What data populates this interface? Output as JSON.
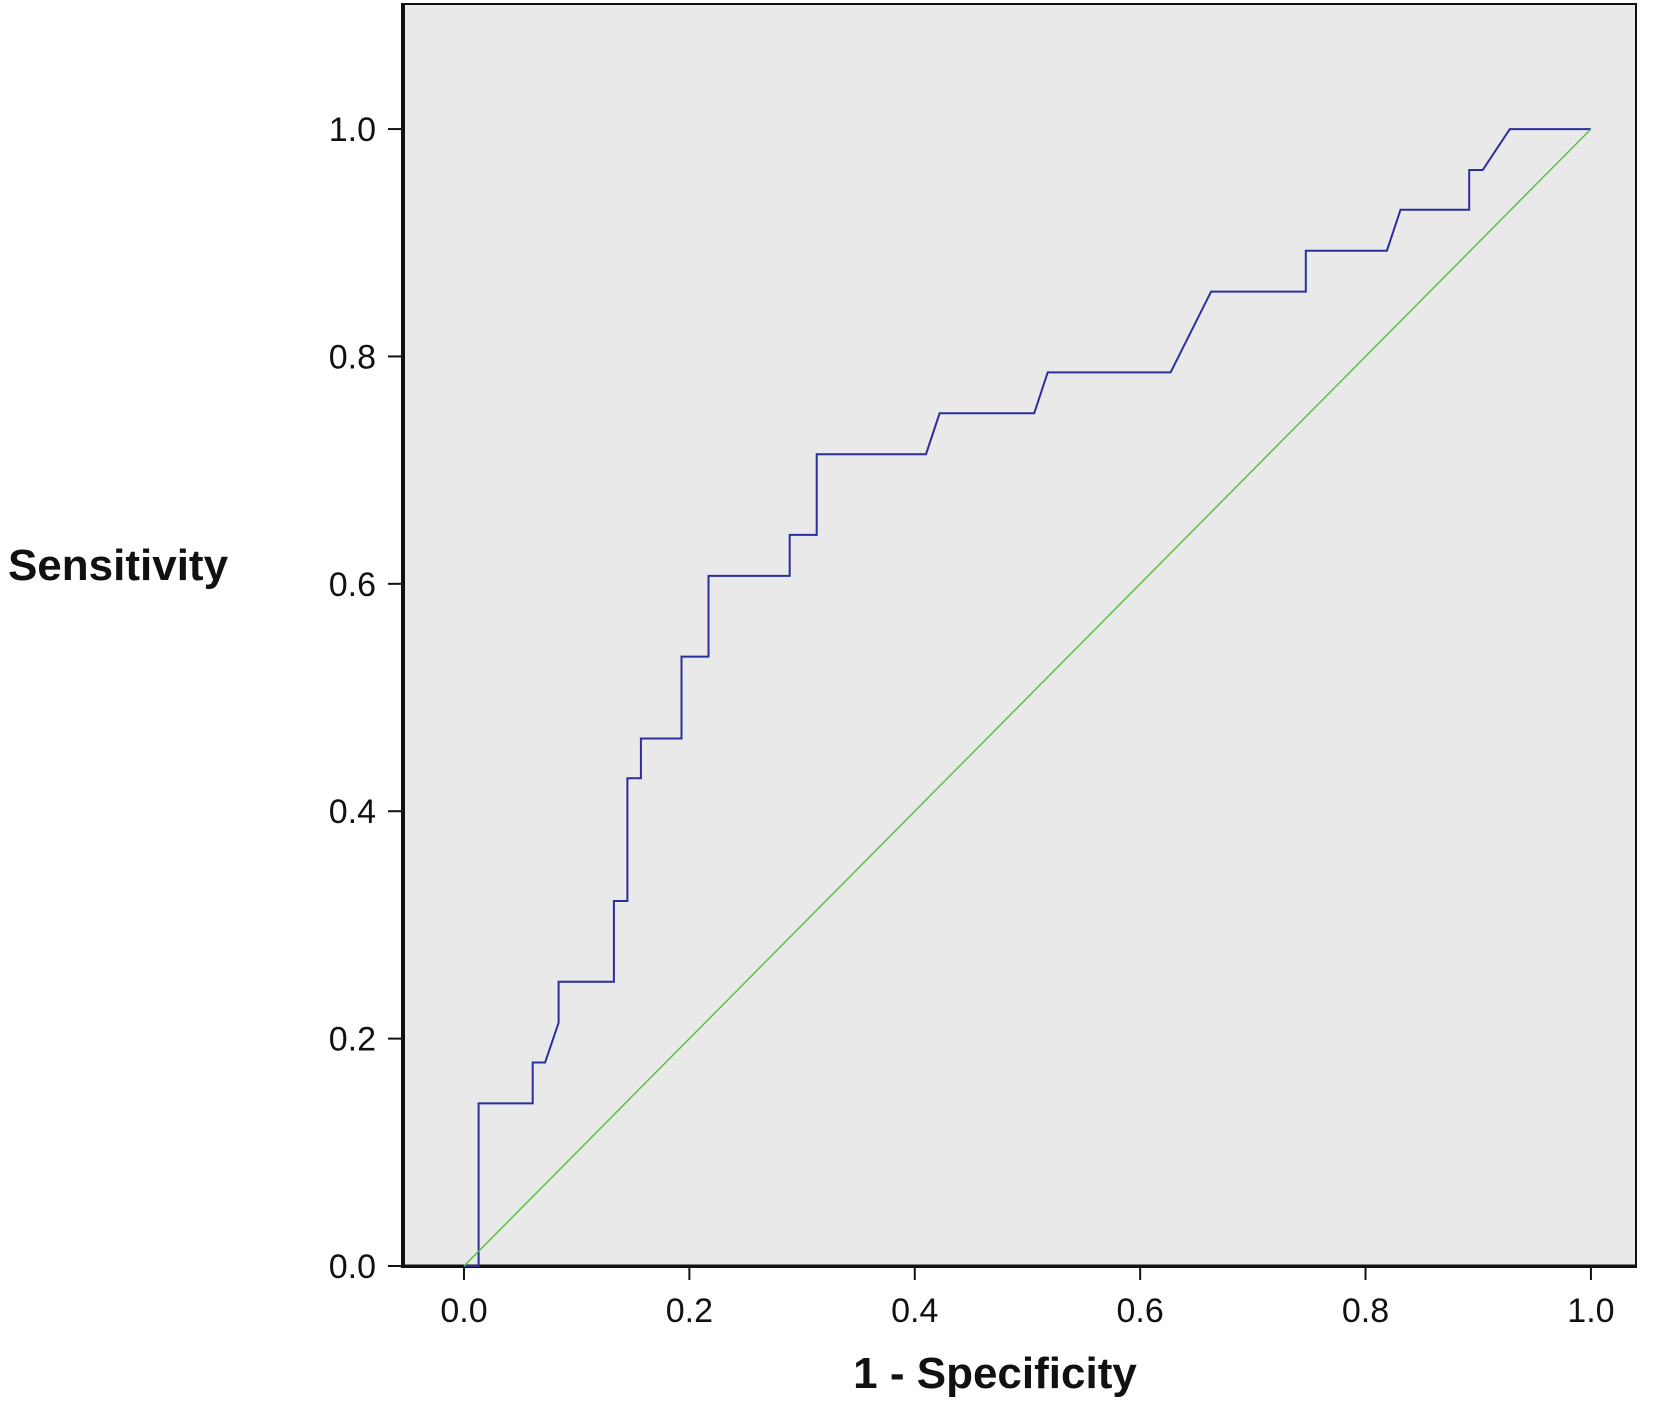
{
  "chart_data": {
    "type": "line",
    "xlabel": "1 - Specificity",
    "ylabel": "Sensitivity",
    "xlim": [
      -0.055,
      1.04
    ],
    "ylim": [
      0.0,
      1.11
    ],
    "xticks": [
      0.0,
      0.2,
      0.4,
      0.6,
      0.8,
      1.0
    ],
    "xtick_labels": [
      "0.0",
      "0.2",
      "0.4",
      "0.6",
      "0.8",
      "1.0"
    ],
    "yticks": [
      0.0,
      0.2,
      0.4,
      0.6,
      0.8,
      1.0
    ],
    "ytick_labels": [
      "0.0",
      "0.2",
      "0.4",
      "0.6",
      "0.8",
      "1.0"
    ],
    "grid": false,
    "background": "#e9e9ea",
    "series": [
      {
        "color": "#2b2f9e",
        "x": [
          0.0,
          0.013,
          0.013,
          0.061,
          0.061,
          0.072,
          0.084,
          0.084,
          0.133,
          0.133,
          0.145,
          0.145,
          0.157,
          0.157,
          0.193,
          0.193,
          0.217,
          0.217,
          0.289,
          0.289,
          0.313,
          0.313,
          0.41,
          0.422,
          0.506,
          0.518,
          0.627,
          0.663,
          0.747,
          0.747,
          0.819,
          0.831,
          0.892,
          0.892,
          0.904,
          0.928,
          1.0
        ],
        "y": [
          0.0,
          0.0,
          0.143,
          0.143,
          0.179,
          0.179,
          0.214,
          0.25,
          0.25,
          0.321,
          0.321,
          0.429,
          0.429,
          0.464,
          0.464,
          0.536,
          0.536,
          0.607,
          0.607,
          0.643,
          0.643,
          0.714,
          0.714,
          0.75,
          0.75,
          0.786,
          0.786,
          0.857,
          0.857,
          0.893,
          0.893,
          0.929,
          0.929,
          0.964,
          0.964,
          1.0,
          1.0
        ]
      },
      {
        "color": "#5cbf47",
        "x": [
          0.0,
          1.0
        ],
        "y": [
          0.0,
          1.0
        ]
      }
    ]
  }
}
